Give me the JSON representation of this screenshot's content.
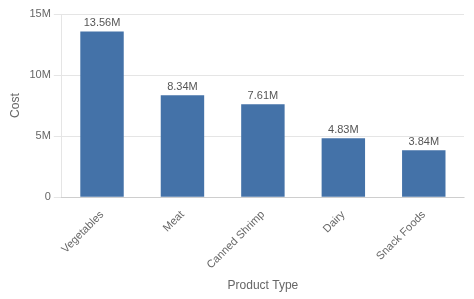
{
  "chart_data": {
    "type": "bar",
    "xlabel": "Product Type",
    "ylabel": "Cost",
    "categories": [
      "Vegetables",
      "Meat",
      "Canned Shrimp",
      "Dairy",
      "Snack Foods"
    ],
    "values": [
      13560000,
      8340000,
      7610000,
      4830000,
      3840000
    ],
    "value_labels": [
      "13.56M",
      "8.34M",
      "7.61M",
      "4.83M",
      "3.84M"
    ],
    "color": "#4472a8",
    "ylim": [
      0,
      15000000
    ],
    "yticks": [
      0,
      {
        "value": 5000000,
        "label": "5M"
      },
      {
        "value": 10000000,
        "label": "10M"
      },
      {
        "value": 15000000,
        "label": "15M"
      }
    ],
    "grid": true,
    "data_labels": true
  }
}
